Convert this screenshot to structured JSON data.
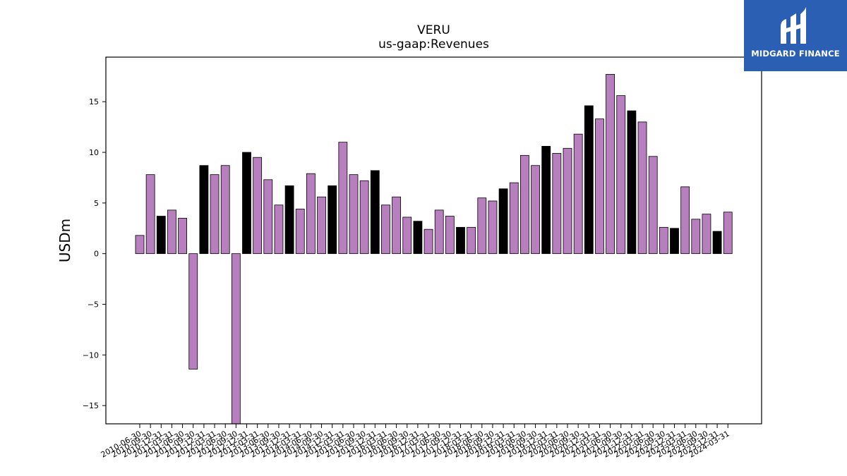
{
  "chart_data": {
    "type": "bar",
    "title": "VERU",
    "subtitle": "us-gaap:Revenues",
    "xlabel": "",
    "ylabel": "USDm",
    "ylim": [
      -16.8,
      19.4
    ],
    "yticks": [
      -15,
      -10,
      -5,
      0,
      5,
      10,
      15
    ],
    "ytick_labels": [
      "−15",
      "−10",
      "−5",
      "0",
      "5",
      "10",
      "15"
    ],
    "grid": false,
    "colors": {
      "quarter": "#b87fbf",
      "annual": "#000000",
      "edge": "#000000"
    },
    "categories": [
      "2010-06-30",
      "2010-09-30",
      "2010-12-31",
      "2011-03-31",
      "2011-06-30",
      "2011-09-30",
      "2011-12-31",
      "2012-03-31",
      "2012-06-30",
      "2012-09-30",
      "2012-12-31",
      "2013-03-31",
      "2013-06-30",
      "2013-09-30",
      "2013-12-31",
      "2014-03-31",
      "2014-06-30",
      "2014-09-30",
      "2014-12-31",
      "2015-03-31",
      "2015-06-30",
      "2015-09-30",
      "2015-12-31",
      "2016-03-31",
      "2016-06-30",
      "2016-09-30",
      "2016-12-31",
      "2017-03-31",
      "2017-06-30",
      "2017-09-30",
      "2017-12-31",
      "2018-03-31",
      "2018-06-30",
      "2018-09-30",
      "2018-12-31",
      "2019-03-31",
      "2019-06-30",
      "2019-09-30",
      "2019-12-31",
      "2020-03-31",
      "2020-06-30",
      "2020-09-30",
      "2020-12-31",
      "2021-03-31",
      "2021-06-30",
      "2021-09-30",
      "2021-12-31",
      "2022-03-31",
      "2022-06-30",
      "2022-09-30",
      "2022-12-31",
      "2023-03-31",
      "2023-06-30",
      "2023-09-30",
      "2023-12-31",
      "2024-03-31"
    ],
    "values": [
      1.8,
      7.8,
      3.7,
      4.3,
      3.5,
      -11.4,
      8.7,
      7.8,
      8.7,
      -16.8,
      10.0,
      9.5,
      7.3,
      4.8,
      6.7,
      4.4,
      7.9,
      5.6,
      6.7,
      11.0,
      7.8,
      7.2,
      8.2,
      4.8,
      5.6,
      3.6,
      3.2,
      2.4,
      4.3,
      3.7,
      2.6,
      2.6,
      5.5,
      5.2,
      6.4,
      7.0,
      9.7,
      8.7,
      10.6,
      9.9,
      10.4,
      11.8,
      14.6,
      13.3,
      17.7,
      15.6,
      14.1,
      13.0,
      9.6,
      2.6,
      2.5,
      6.6,
      3.4,
      3.9,
      2.2,
      4.1
    ],
    "annual": [
      false,
      false,
      true,
      false,
      false,
      false,
      true,
      false,
      false,
      false,
      true,
      false,
      false,
      false,
      true,
      false,
      false,
      false,
      true,
      false,
      false,
      false,
      true,
      false,
      false,
      false,
      true,
      false,
      false,
      false,
      true,
      false,
      false,
      false,
      true,
      false,
      false,
      false,
      true,
      false,
      false,
      false,
      true,
      false,
      false,
      false,
      true,
      false,
      false,
      false,
      true,
      false,
      false,
      false,
      true,
      false
    ]
  },
  "logo": {
    "text": "MIDGARD FINANCE",
    "color": "#2b5fb3"
  }
}
